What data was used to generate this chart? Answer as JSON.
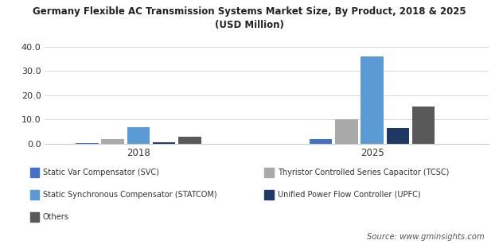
{
  "title": "Germany Flexible AC Transmission Systems Market Size, By Product, 2018 & 2025\n(USD Million)",
  "years": [
    "2018",
    "2025"
  ],
  "categories": [
    "Static Var Compensator (SVC)",
    "Thyristor Controlled Series Capacitor (TCSC)",
    "Static Synchronous Compensator (STATCOM)",
    "Unified Power Flow Controller (UPFC)",
    "Others"
  ],
  "values_2018": [
    0.3,
    1.8,
    7.0,
    0.5,
    3.0
  ],
  "values_2025": [
    2.0,
    10.0,
    36.0,
    6.5,
    15.5
  ],
  "colors": [
    "#4472C4",
    "#A9A9A9",
    "#5B9BD5",
    "#1F3864",
    "#595959"
  ],
  "ylim": [
    0,
    45
  ],
  "yticks": [
    0.0,
    10.0,
    20.0,
    30.0,
    40.0
  ],
  "source_text": "Source: www.gminsights.com",
  "bg_color": "#FFFFFF",
  "footer_bg_color": "#E0E0E0"
}
